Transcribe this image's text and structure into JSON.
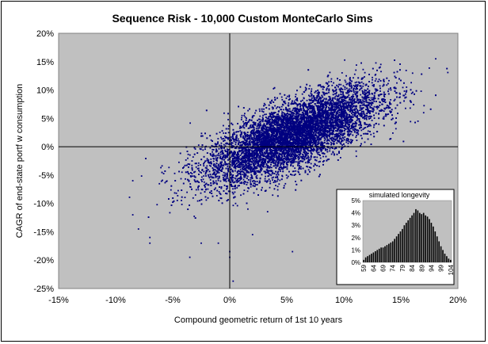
{
  "chart_data": [
    {
      "type": "scatter",
      "title": "Sequence Risk - 10,000 Custom MonteCarlo Sims",
      "xlabel": "Compound geometric return of 1st 10 years",
      "ylabel": "CAGR of end-state portf w consumption",
      "xlim": [
        -0.15,
        0.2
      ],
      "ylim": [
        -0.25,
        0.2
      ],
      "x_ticks": [
        {
          "value": -0.15,
          "label": "-15%"
        },
        {
          "value": -0.1,
          "label": "-10%"
        },
        {
          "value": -0.05,
          "label": "-5%"
        },
        {
          "value": 0.0,
          "label": "0%"
        },
        {
          "value": 0.05,
          "label": "5%"
        },
        {
          "value": 0.1,
          "label": "10%"
        },
        {
          "value": 0.15,
          "label": "15%"
        },
        {
          "value": 0.2,
          "label": "20%"
        }
      ],
      "y_ticks": [
        {
          "value": -0.25,
          "label": "-25%"
        },
        {
          "value": -0.2,
          "label": "-20%"
        },
        {
          "value": -0.15,
          "label": "-15%"
        },
        {
          "value": -0.1,
          "label": "-10%"
        },
        {
          "value": -0.05,
          "label": "-5%"
        },
        {
          "value": 0.0,
          "label": "0%"
        },
        {
          "value": 0.05,
          "label": "5%"
        },
        {
          "value": 0.1,
          "label": "10%"
        },
        {
          "value": 0.15,
          "label": "15%"
        },
        {
          "value": 0.2,
          "label": "20%"
        }
      ],
      "grid": false,
      "plot_background": "#c0c0c0",
      "point_color": "#000080",
      "series": [
        {
          "n": 10000,
          "distribution": "bivariate, positively correlated",
          "x_mean": 0.055,
          "x_sd": 0.038,
          "y_mean": 0.02,
          "y_sd": 0.042,
          "correlation": 0.72,
          "outliers": [
            [
              -0.085,
              -0.06
            ],
            [
              -0.085,
              -0.12
            ],
            [
              -0.08,
              -0.145
            ],
            [
              -0.07,
              -0.16
            ],
            [
              -0.07,
              -0.17
            ],
            [
              -0.035,
              -0.195
            ],
            [
              -0.025,
              -0.17
            ],
            [
              -0.01,
              -0.17
            ],
            [
              0.0,
              -0.185
            ],
            [
              0.0,
              -0.195
            ],
            [
              0.003,
              -0.237
            ],
            [
              0.02,
              -0.155
            ],
            [
              0.055,
              -0.185
            ],
            [
              0.125,
              0.122
            ],
            [
              0.135,
              0.118
            ],
            [
              0.155,
              0.105
            ],
            [
              0.17,
              0.06
            ],
            [
              0.165,
              0.045
            ]
          ]
        }
      ]
    },
    {
      "type": "bar",
      "title": "simulated longevity",
      "x_range": [
        59,
        105
      ],
      "x_tick_labels": [
        "59",
        "64",
        "69",
        "74",
        "79",
        "84",
        "89",
        "94",
        "99",
        "104"
      ],
      "ylim": [
        0,
        0.05
      ],
      "y_tick_labels": [
        "0%",
        "1%",
        "2%",
        "3%",
        "4%",
        "5%"
      ],
      "bar_color": "#000000",
      "values": [
        0.002,
        0.004,
        0.005,
        0.006,
        0.007,
        0.008,
        0.009,
        0.01,
        0.011,
        0.012,
        0.012,
        0.013,
        0.014,
        0.015,
        0.016,
        0.017,
        0.019,
        0.021,
        0.023,
        0.025,
        0.027,
        0.03,
        0.032,
        0.034,
        0.036,
        0.038,
        0.04,
        0.043,
        0.042,
        0.04,
        0.039,
        0.04,
        0.038,
        0.037,
        0.035,
        0.032,
        0.029,
        0.025,
        0.021,
        0.017,
        0.013,
        0.01,
        0.007,
        0.005,
        0.003,
        0.002
      ]
    }
  ]
}
